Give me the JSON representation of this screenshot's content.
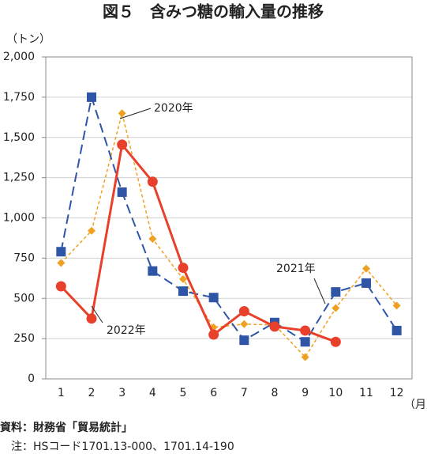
{
  "chart_data": {
    "type": "line",
    "title": "図５　含みつ糖の輸入量の推移",
    "y_label": "（トン）",
    "x_label": "（月）",
    "source": "資料：財務省「貿易統計」",
    "note": "注：HSコード1701.13-000、1701.14-190",
    "categories": [
      "1",
      "2",
      "3",
      "4",
      "5",
      "6",
      "7",
      "8",
      "9",
      "10",
      "11",
      "12"
    ],
    "series": [
      {
        "name": "2020年",
        "color": "#f0a020",
        "marker": "diamond",
        "values": [
          720,
          920,
          1650,
          870,
          620,
          320,
          340,
          335,
          135,
          440,
          685,
          455
        ]
      },
      {
        "name": "2021年",
        "color": "#2e55a6",
        "marker": "square",
        "values": [
          790,
          1750,
          1160,
          670,
          545,
          505,
          240,
          350,
          230,
          540,
          595,
          300
        ]
      },
      {
        "name": "2022年",
        "color": "#e8402a",
        "marker": "circle",
        "values": [
          575,
          375,
          1455,
          1225,
          690,
          275,
          420,
          325,
          300,
          230,
          null,
          null
        ]
      }
    ],
    "ylim": [
      0,
      2000
    ],
    "yticks": [
      0,
      250,
      500,
      750,
      {
        "value": 1000,
        "label": "1,000"
      },
      {
        "value": 1250,
        "label": "1,250"
      },
      {
        "value": 1500,
        "label": "1,500"
      },
      {
        "value": 1750,
        "label": "1,750"
      },
      {
        "value": 2000,
        "label": "2,000"
      }
    ],
    "grid": true
  }
}
